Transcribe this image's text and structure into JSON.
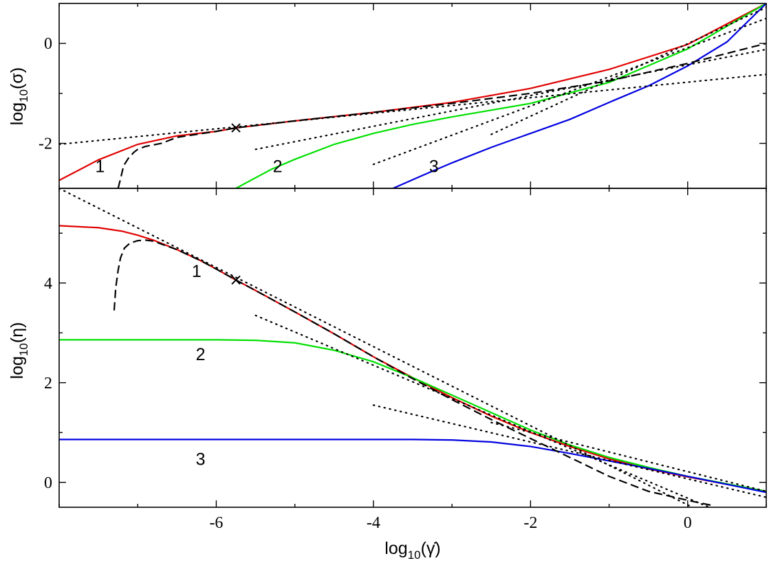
{
  "chart_data": [
    {
      "type": "line",
      "panel": "top",
      "ylabel": {
        "base": "log",
        "sub": "10",
        "rest": "(σ)"
      },
      "xlim": [
        -8,
        1
      ],
      "ylim": [
        -2.9,
        0.8
      ],
      "xticks": [
        -6,
        -4,
        -2,
        0
      ],
      "yticks": [
        -2,
        0
      ],
      "ytick_labels": [
        "-2",
        "0"
      ],
      "series": [
        {
          "name": "1",
          "color": "#e00000",
          "style": "solid",
          "x": [
            -8,
            -7.5,
            -7,
            -6.5,
            -6,
            -5.75,
            -5,
            -4,
            -3,
            -2,
            -1,
            0,
            1
          ],
          "y": [
            -2.74,
            -2.33,
            -2.02,
            -1.85,
            -1.76,
            -1.69,
            -1.55,
            -1.38,
            -1.18,
            -0.9,
            -0.52,
            -0.02,
            0.8
          ]
        },
        {
          "name": "2",
          "color": "#00e000",
          "style": "solid",
          "x": [
            -5.75,
            -5.3,
            -5,
            -4.5,
            -4,
            -3.5,
            -3,
            -2,
            -1,
            0,
            1
          ],
          "y": [
            -2.9,
            -2.52,
            -2.32,
            -2.02,
            -1.8,
            -1.62,
            -1.47,
            -1.2,
            -0.78,
            -0.11,
            0.8
          ]
        },
        {
          "name": "3",
          "color": "#0000e0",
          "style": "solid",
          "x": [
            -3.75,
            -3.3,
            -3,
            -2.5,
            -2,
            -1.5,
            -1,
            -0.5,
            0,
            0.5,
            1
          ],
          "y": [
            -2.9,
            -2.59,
            -2.39,
            -2.08,
            -1.8,
            -1.52,
            -1.18,
            -0.85,
            -0.45,
            0.03,
            0.8
          ]
        },
        {
          "name": "",
          "color": "#000000",
          "style": "dashed",
          "x": [
            -7.25,
            -7.22,
            -7.18,
            -7.12,
            -7.05,
            -7.0,
            -6.9,
            -6.7,
            -6.5,
            -6,
            -5.75,
            -5,
            -4,
            -3,
            -2,
            -1,
            0,
            1
          ],
          "y": [
            -2.9,
            -2.72,
            -2.45,
            -2.3,
            -2.18,
            -2.12,
            -2.06,
            -2.0,
            -1.88,
            -1.76,
            -1.69,
            -1.55,
            -1.38,
            -1.2,
            -1.0,
            -0.75,
            -0.4,
            0.0
          ]
        },
        {
          "name": "",
          "color": "#000000",
          "style": "dotted",
          "x": [
            -8,
            1
          ],
          "y": [
            -2.02,
            -0.62
          ]
        },
        {
          "name": "",
          "color": "#000000",
          "style": "dotted",
          "x": [
            -5.5,
            1
          ],
          "y": [
            -2.12,
            -0.12
          ]
        },
        {
          "name": "",
          "color": "#000000",
          "style": "dotted",
          "x": [
            -4,
            1
          ],
          "y": [
            -2.42,
            0.5
          ]
        },
        {
          "name": "",
          "color": "#000000",
          "style": "dotted",
          "x": [
            -2.5,
            1
          ],
          "y": [
            -1.82,
            0.72
          ]
        }
      ],
      "markers": [
        {
          "x": -5.75,
          "y": -1.69,
          "symbol": "x"
        }
      ],
      "annotations": [
        {
          "text": "1",
          "x": -7.48,
          "y": -2.58
        },
        {
          "text": "2",
          "x": -5.22,
          "y": -2.58
        },
        {
          "text": "3",
          "x": -3.23,
          "y": -2.58
        }
      ]
    },
    {
      "type": "line",
      "panel": "bottom",
      "ylabel": {
        "base": "log",
        "sub": "10",
        "rest": "(η)"
      },
      "xlabel": {
        "base": "log",
        "sub": "10",
        "rest": "(γ̇)"
      },
      "xlim": [
        -8,
        1
      ],
      "ylim": [
        -0.5,
        5.9
      ],
      "xticks": [
        -6,
        -4,
        -2,
        0
      ],
      "xtick_labels": [
        "-6",
        "-4",
        "-2",
        "0"
      ],
      "yticks": [
        0,
        2,
        4
      ],
      "ytick_labels": [
        "0",
        "2",
        "4"
      ],
      "series": [
        {
          "name": "1",
          "color": "#e00000",
          "style": "solid",
          "x": [
            -8,
            -7.5,
            -7.2,
            -7,
            -6.8,
            -6.5,
            -6.2,
            -6,
            -5.75,
            -5.5,
            -5,
            -4.5,
            -4,
            -3.5,
            -3,
            -2.5,
            -2,
            -1.5,
            -1,
            -0.5,
            0,
            0.5,
            1
          ],
          "y": [
            5.15,
            5.11,
            5.04,
            4.96,
            4.86,
            4.67,
            4.45,
            4.28,
            4.06,
            3.85,
            3.42,
            2.98,
            2.52,
            2.1,
            1.7,
            1.33,
            1.0,
            0.72,
            0.47,
            0.27,
            0.11,
            -0.04,
            -0.18
          ]
        },
        {
          "name": "2",
          "color": "#00e000",
          "style": "solid",
          "x": [
            -8,
            -6,
            -5.5,
            -5,
            -4.5,
            -4,
            -3.5,
            -3,
            -2.5,
            -2,
            -1.5,
            -1,
            -0.5,
            0,
            0.5,
            1
          ],
          "y": [
            2.86,
            2.86,
            2.85,
            2.8,
            2.65,
            2.42,
            2.1,
            1.75,
            1.4,
            1.05,
            0.75,
            0.5,
            0.3,
            0.12,
            -0.03,
            -0.18
          ]
        },
        {
          "name": "3",
          "color": "#0000e0",
          "style": "solid",
          "x": [
            -8,
            -4,
            -3.5,
            -3,
            -2.5,
            -2,
            -1.5,
            -1,
            -0.5,
            0,
            0.5,
            1
          ],
          "y": [
            0.86,
            0.86,
            0.86,
            0.85,
            0.81,
            0.72,
            0.58,
            0.43,
            0.28,
            0.12,
            -0.04,
            -0.2
          ]
        },
        {
          "name": "",
          "color": "#000000",
          "style": "dashed",
          "x": [
            -7.3,
            -7.28,
            -7.25,
            -7.22,
            -7.17,
            -7.1,
            -7.0,
            -6.9,
            -6.8,
            -6.5,
            -6.2,
            -6,
            -5.75,
            -5.5,
            -5,
            -4.5,
            -4,
            -3.5,
            -3,
            -2.5,
            -2,
            -1.5,
            -1,
            -0.5,
            0,
            0.3
          ],
          "y": [
            3.45,
            3.9,
            4.25,
            4.5,
            4.7,
            4.8,
            4.85,
            4.86,
            4.84,
            4.67,
            4.45,
            4.28,
            4.06,
            3.85,
            3.42,
            2.98,
            2.52,
            2.08,
            1.66,
            1.26,
            0.88,
            0.5,
            0.12,
            -0.18,
            -0.36,
            -0.46
          ]
        },
        {
          "name": "",
          "color": "#000000",
          "style": "dotted",
          "x": [
            -8,
            0.5
          ],
          "y": [
            5.9,
            -0.85
          ]
        },
        {
          "name": "",
          "color": "#000000",
          "style": "dotted",
          "x": [
            -5.5,
            0.5
          ],
          "y": [
            3.35,
            -0.65
          ]
        },
        {
          "name": "",
          "color": "#000000",
          "style": "dotted",
          "x": [
            -4,
            1
          ],
          "y": [
            1.55,
            -0.3
          ]
        },
        {
          "name": "",
          "color": "#000000",
          "style": "dotted",
          "x": [
            -2.5,
            1
          ],
          "y": [
            1.2,
            -0.18
          ]
        }
      ],
      "markers": [
        {
          "x": -5.75,
          "y": 4.06,
          "symbol": "x"
        }
      ],
      "annotations": [
        {
          "text": "1",
          "x": -6.25,
          "y": 4.12
        },
        {
          "text": "2",
          "x": -6.2,
          "y": 2.45
        },
        {
          "text": "3",
          "x": -6.2,
          "y": 0.35
        }
      ]
    }
  ]
}
